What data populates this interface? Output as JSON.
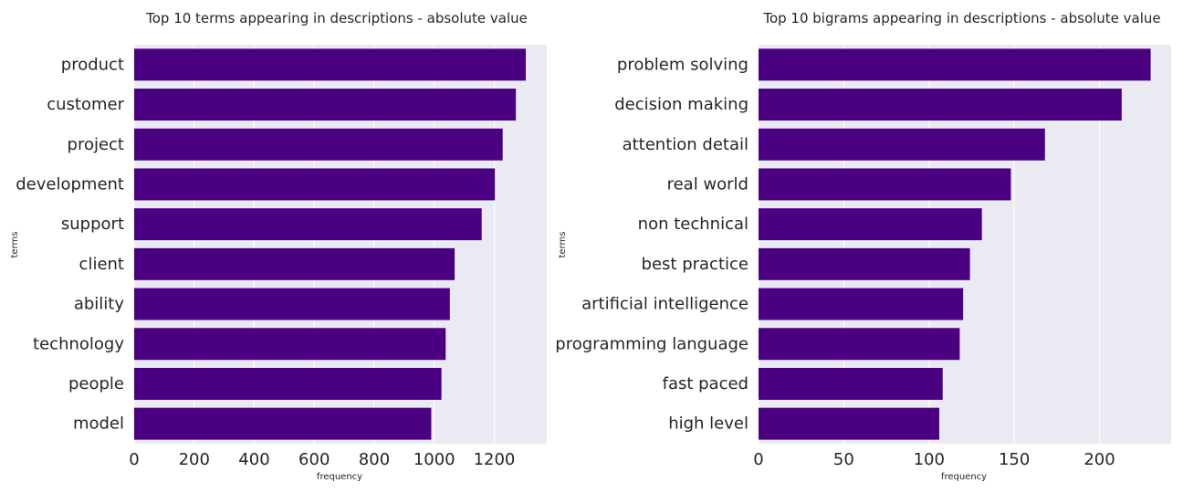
{
  "chart_data": [
    {
      "type": "bar",
      "orientation": "horizontal",
      "title": "Top 10 terms appearing in descriptions - absolute value",
      "xlabel": "frequency",
      "ylabel": "terms",
      "categories": [
        "product",
        "customer",
        "project",
        "development",
        "support",
        "client",
        "ability",
        "technology",
        "people",
        "model"
      ],
      "values": [
        1305,
        1272,
        1228,
        1202,
        1158,
        1068,
        1052,
        1038,
        1024,
        990
      ],
      "xlim": [
        0,
        1375
      ],
      "xticks": [
        0,
        200,
        400,
        600,
        800,
        1000,
        1200
      ],
      "grid": true,
      "bar_color": "#4b0082",
      "background_color": "#eaeaf2"
    },
    {
      "type": "bar",
      "orientation": "horizontal",
      "title": "Top 10 bigrams appearing in descriptions - absolute value",
      "xlabel": "frequency",
      "ylabel": "terms",
      "categories": [
        "problem solving",
        "decision making",
        "attention detail",
        "real world",
        "non technical",
        "best practice",
        "artificial intelligence",
        "programming language",
        "fast paced",
        "high level"
      ],
      "values": [
        230,
        213,
        168,
        148,
        131,
        124,
        120,
        118,
        108,
        106
      ],
      "xlim": [
        0,
        242
      ],
      "xticks": [
        0,
        50,
        100,
        150,
        200
      ],
      "grid": true,
      "bar_color": "#4b0082",
      "background_color": "#eaeaf2"
    }
  ]
}
